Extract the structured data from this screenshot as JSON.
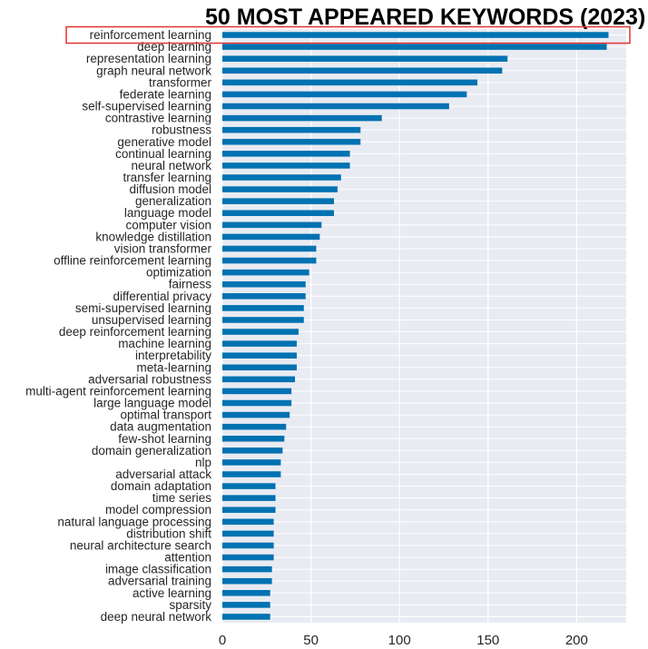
{
  "chart_data": {
    "type": "bar",
    "orientation": "horizontal",
    "title": "50 MOST APPEARED KEYWORDS (2023)",
    "xlabel": "",
    "ylabel": "",
    "xlim": [
      0,
      228
    ],
    "xticks": [
      0,
      50,
      100,
      150,
      200
    ],
    "grid": true,
    "bar_color": "#0072b2",
    "background_color": "#e9ebf2",
    "highlight_color": "#e0342f",
    "highlighted_category": "reinforcement learning",
    "categories": [
      "reinforcement learning",
      "deep learning",
      "representation learning",
      "graph neural network",
      "transformer",
      "federate learning",
      "self-supervised learning",
      "contrastive learning",
      "robustness",
      "generative model",
      "continual learning",
      "neural network",
      "transfer learning",
      "diffusion model",
      "generalization",
      "language model",
      "computer vision",
      "knowledge distillation",
      "vision transformer",
      "offline reinforcement learning",
      "optimization",
      "fairness",
      "differential privacy",
      "semi-supervised learning",
      "unsupervised learning",
      "deep reinforcement learning",
      "machine learning",
      "interpretability",
      "meta-learning",
      "adversarial robustness",
      "multi-agent reinforcement learning",
      "large language model",
      "optimal transport",
      "data augmentation",
      "few-shot learning",
      "domain generalization",
      "nlp",
      "adversarial attack",
      "domain adaptation",
      "time series",
      "model compression",
      "natural language processing",
      "distribution shift",
      "neural architecture search",
      "attention",
      "image classification",
      "adversarial training",
      "active learning",
      "sparsity",
      "deep neural network"
    ],
    "values": [
      218,
      217,
      161,
      158,
      144,
      138,
      128,
      90,
      78,
      78,
      72,
      72,
      67,
      65,
      63,
      63,
      56,
      55,
      53,
      53,
      49,
      47,
      47,
      46,
      46,
      43,
      42,
      42,
      42,
      41,
      39,
      39,
      38,
      36,
      35,
      34,
      33,
      33,
      30,
      30,
      30,
      29,
      29,
      29,
      29,
      28,
      28,
      27,
      27,
      27
    ]
  }
}
